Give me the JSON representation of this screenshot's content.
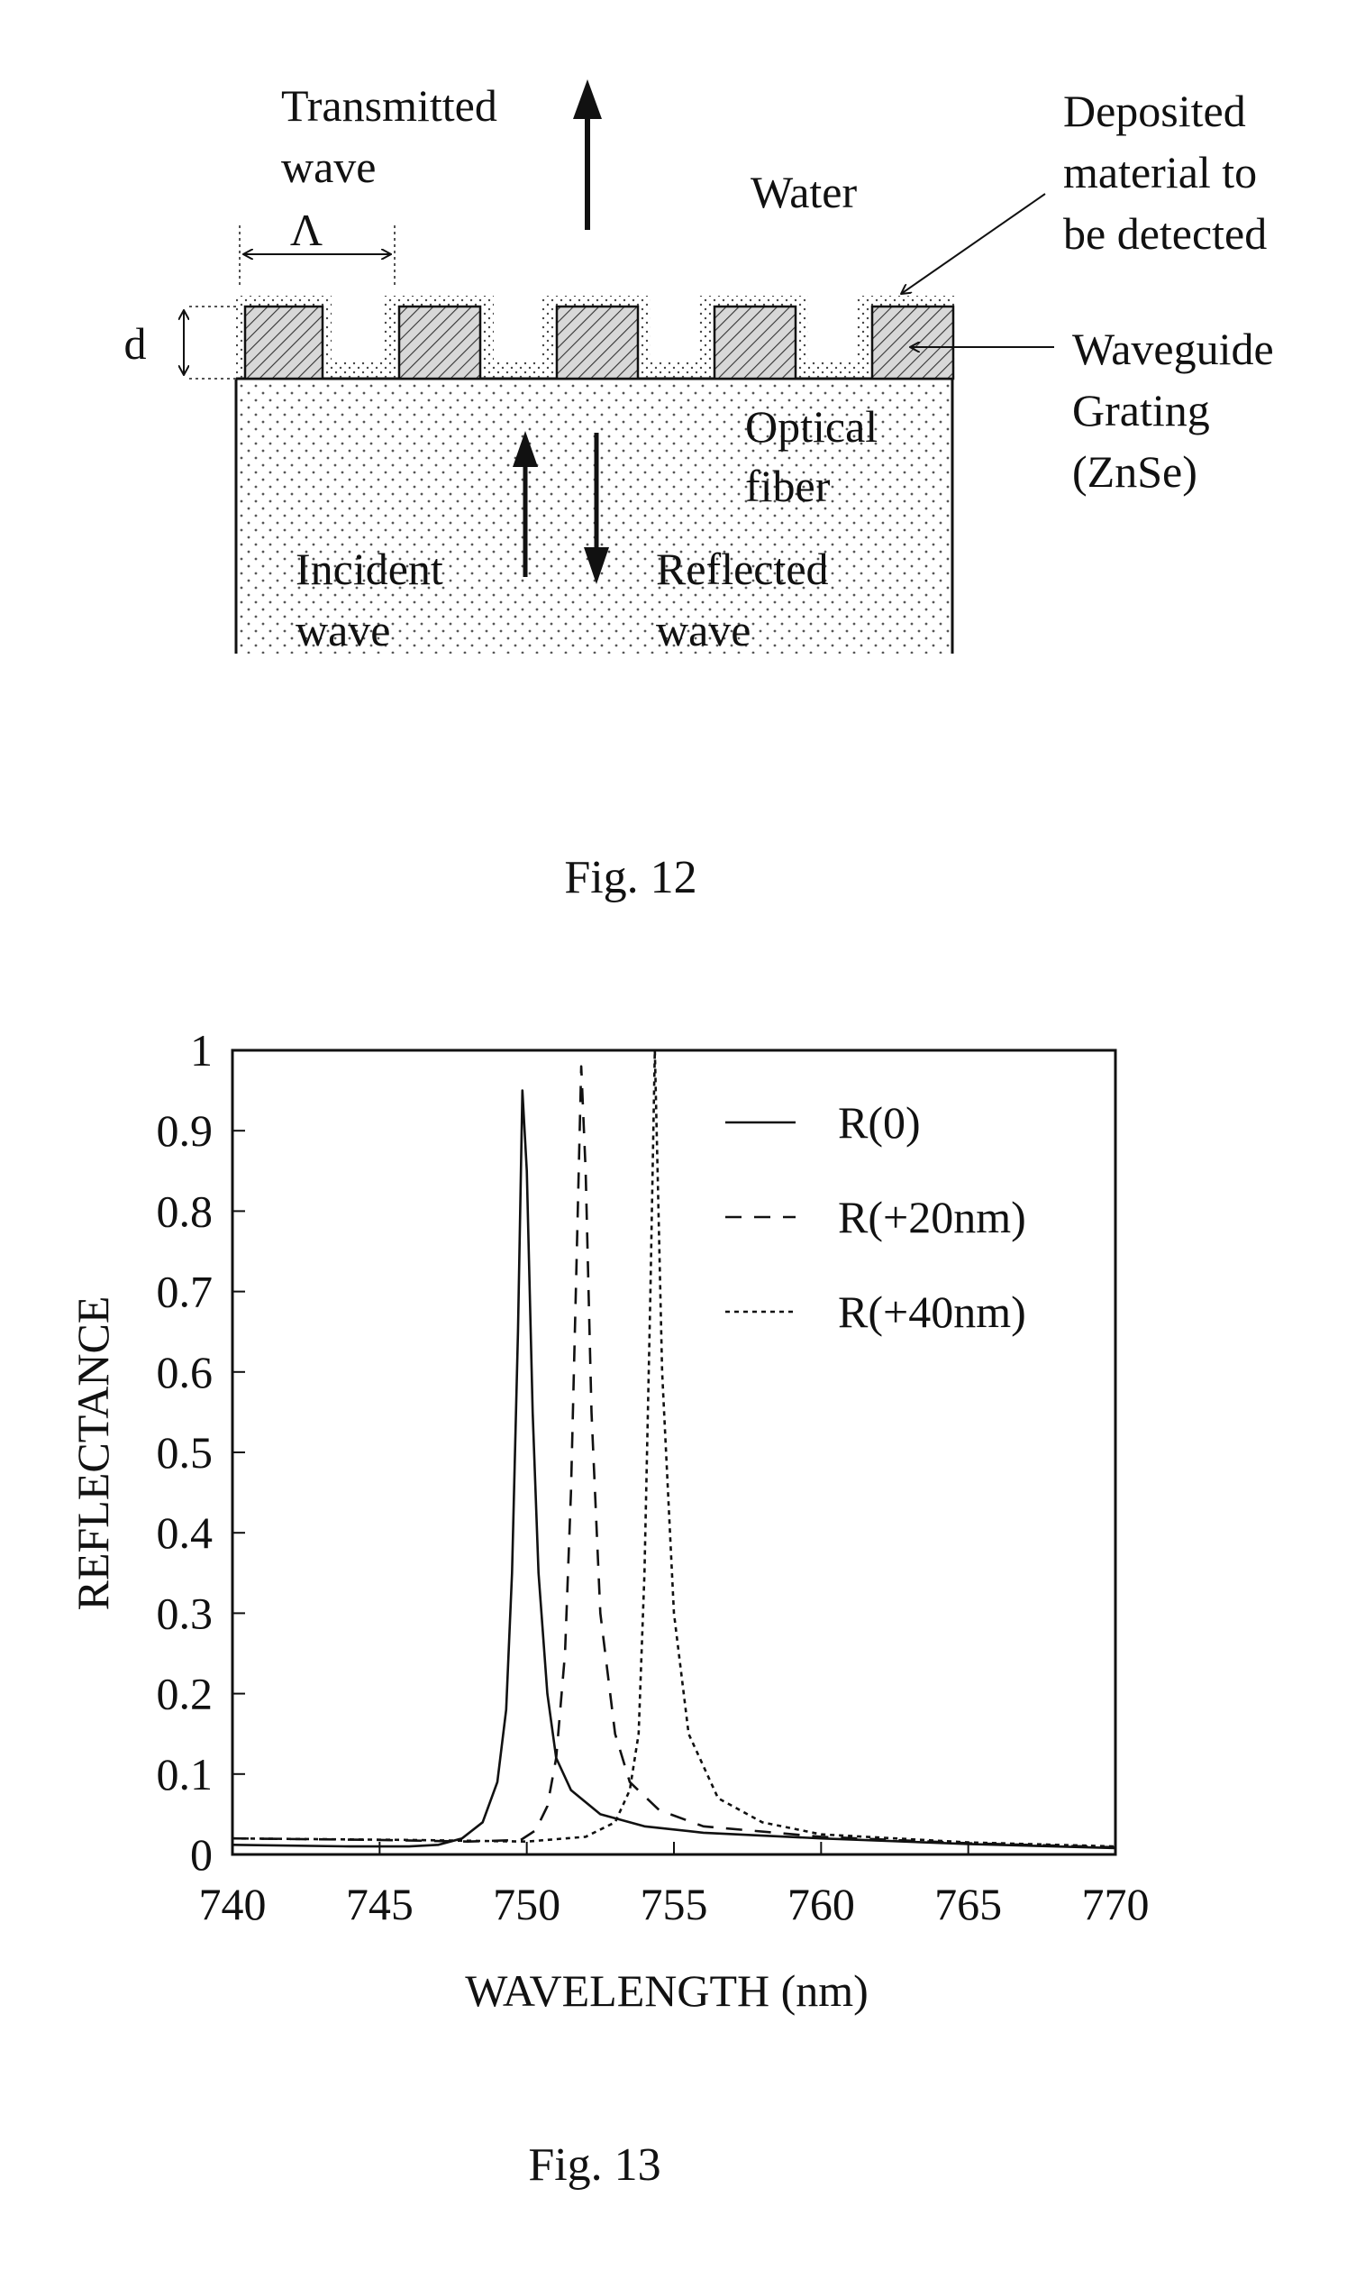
{
  "fig12": {
    "caption": "Fig. 12",
    "labels": {
      "transmitted_1": "Transmitted",
      "transmitted_2": "wave",
      "water": "Water",
      "deposited_1": "Deposited",
      "deposited_2": "material to",
      "deposited_3": "be detected",
      "waveguide_1": "Waveguide",
      "waveguide_2": "Grating",
      "waveguide_3": "(ZnSe)",
      "optical_1": "Optical",
      "optical_2": "fiber",
      "incident_1": "Incident",
      "incident_2": "wave",
      "reflected_1": "Reflected",
      "reflected_2": "wave",
      "d": "d",
      "lambda": "Λ"
    }
  },
  "fig13": {
    "caption": "Fig. 13"
  },
  "chart_data": {
    "type": "line",
    "xlabel": "WAVELENGTH (nm)",
    "ylabel": "REFLECTANCE",
    "xlim": [
      740,
      770
    ],
    "ylim": [
      0,
      1
    ],
    "xticks": [
      "740",
      "745",
      "750",
      "755",
      "760",
      "765",
      "770"
    ],
    "yticks": [
      "0",
      "0.1",
      "0.2",
      "0.3",
      "0.4",
      "0.5",
      "0.6",
      "0.7",
      "0.8",
      "0.9",
      "1"
    ],
    "legend_position": "top-right",
    "series": [
      {
        "name": "R(0)",
        "style": "solid",
        "points": [
          [
            740,
            0.012
          ],
          [
            744,
            0.01
          ],
          [
            746,
            0.01
          ],
          [
            747,
            0.012
          ],
          [
            747.8,
            0.02
          ],
          [
            748.5,
            0.04
          ],
          [
            749.0,
            0.09
          ],
          [
            749.3,
            0.18
          ],
          [
            749.5,
            0.35
          ],
          [
            749.7,
            0.65
          ],
          [
            749.85,
            0.95
          ],
          [
            750.0,
            0.85
          ],
          [
            750.2,
            0.55
          ],
          [
            750.4,
            0.35
          ],
          [
            750.7,
            0.2
          ],
          [
            751.0,
            0.12
          ],
          [
            751.5,
            0.08
          ],
          [
            752.5,
            0.05
          ],
          [
            754,
            0.035
          ],
          [
            756,
            0.027
          ],
          [
            760,
            0.02
          ],
          [
            765,
            0.013
          ],
          [
            770,
            0.008
          ]
        ]
      },
      {
        "name": "R(+20nm)",
        "style": "dashed",
        "points": [
          [
            740,
            0.02
          ],
          [
            745,
            0.018
          ],
          [
            748,
            0.016
          ],
          [
            749.8,
            0.018
          ],
          [
            750.3,
            0.03
          ],
          [
            750.7,
            0.06
          ],
          [
            751.0,
            0.12
          ],
          [
            751.3,
            0.25
          ],
          [
            751.5,
            0.45
          ],
          [
            751.7,
            0.75
          ],
          [
            751.85,
            0.98
          ],
          [
            752.0,
            0.85
          ],
          [
            752.2,
            0.55
          ],
          [
            752.5,
            0.3
          ],
          [
            753.0,
            0.15
          ],
          [
            753.5,
            0.09
          ],
          [
            754.5,
            0.055
          ],
          [
            756,
            0.035
          ],
          [
            760,
            0.022
          ],
          [
            765,
            0.014
          ],
          [
            770,
            0.009
          ]
        ]
      },
      {
        "name": "R(+40nm)",
        "style": "dotted",
        "points": [
          [
            740,
            0.02
          ],
          [
            746,
            0.018
          ],
          [
            750,
            0.016
          ],
          [
            752,
            0.022
          ],
          [
            753,
            0.04
          ],
          [
            753.5,
            0.08
          ],
          [
            753.8,
            0.15
          ],
          [
            754.0,
            0.35
          ],
          [
            754.2,
            0.7
          ],
          [
            754.35,
            1.0
          ],
          [
            754.6,
            0.6
          ],
          [
            755.0,
            0.3
          ],
          [
            755.5,
            0.15
          ],
          [
            756.5,
            0.07
          ],
          [
            758,
            0.04
          ],
          [
            760,
            0.025
          ],
          [
            765,
            0.015
          ],
          [
            770,
            0.01
          ]
        ]
      }
    ]
  }
}
